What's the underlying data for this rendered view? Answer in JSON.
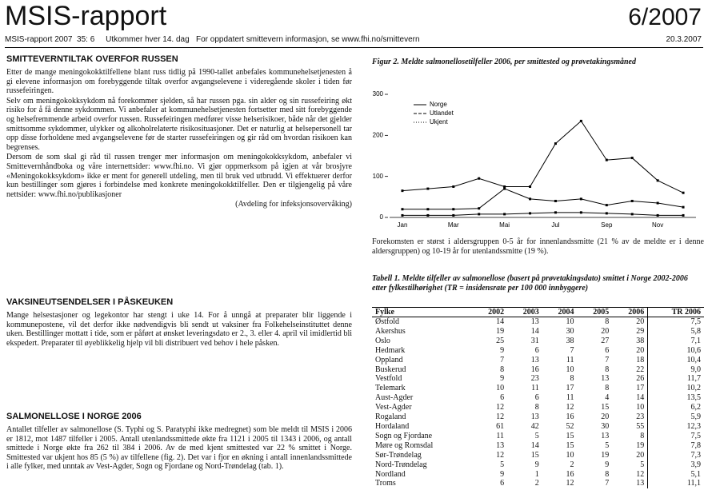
{
  "header": {
    "title": "MSIS-rapport",
    "issue": "6/2007",
    "subline": "MSIS-rapport 2007  35: 6     Utkommer hver 14. dag   For oppdatert smittevern informasjon, se www.fhi.no/smittevern",
    "date": "20.3.2007"
  },
  "sections": [
    {
      "heading": "SMITTEVERNTILTAK OVERFOR RUSSEN",
      "paragraphs": [
        "Etter de mange meningokokktilfellene blant russ tidlig på 1990-tallet anbefales kommunehelsetjenesten å gi elevene informasjon om forebyggende tiltak overfor avgangselevene i videregående skoler i tiden før russefeiringen.",
        "Selv om meningokokksykdom nå forekommer sjelden, så har russen pga. sin alder og sin russefeiring økt risiko for å få denne sykdommen. Vi anbefaler at kommunehelsetjenesten fortsetter med sitt forebyggende og helsefremmende arbeid overfor russen. Russefeiringen medfører visse helserisikoer, både når det gjelder smittsomme sykdommer, ulykker og alkoholrelaterte risikosituasjoner. Det er naturlig at helsepersonell tar opp disse forholdene med avgangselevene før de starter russefeiringen og gir råd om hvordan risikoen kan begrenses.",
        "Dersom de som skal gi råd til russen trenger mer informasjon om meningokokksykdom, anbefaler vi Smittevernhåndboka og våre internettsider: www.fhi.no. Vi gjør oppmerksom på igjen at vår brosjyre «Meningokokksykdom» ikke er ment for generell utdeling, men til bruk ved utbrudd. Vi effektuerer derfor kun bestillinger som gjøres i forbindelse med konkrete meningokokktilfeller. Den er tilgjengelig på våre nettsider: www.fhi.no/publikasjoner"
      ],
      "signature": "(Avdeling for infeksjonsovervåking)"
    },
    {
      "heading": "VAKSINEUTSENDELSER I PÅSKEUKEN",
      "paragraphs": [
        "Mange helsestasjoner og legekontor har stengt i uke 14. For å unngå at preparater blir liggende i kommunepostene, vil det derfor ikke nødvendigvis bli sendt ut vaksiner fra Folkehelseinstituttet denne uken. Bestillinger mottatt i tide, som er påført at ønsket leveringsdato er 2., 3. eller 4. april vil imidlertid bli ekspedert. Preparater til øyeblikkelig hjelp vil bli distribuert ved behov i hele påsken."
      ]
    },
    {
      "heading": "SALMONELLOSE I NORGE 2006",
      "paragraphs": [
        "Antallet tilfeller av salmonellose (S. Typhi og S. Paratyphi ikke medregnet) som ble meldt til MSIS i 2006 er 1812, mot 1487 tilfeller i 2005. Antall utenlandssmittede økte fra 1121 i 2005 til 1343 i 2006, og antall smittede i Norge økte fra 262 til 384 i 2006. Av de med kjent smittested var 22 % smittet i Norge. Smittested var ukjent hos 85 (5 %) av tilfellene (fig. 2). Det var i fjor en økning i antall innenlandssmittede i alle fylker, med unntak av Vest-Agder, Sogn og Fjordane og Nord-Trøndelag (tab. 1)."
      ]
    }
  ],
  "figure": {
    "caption": "Figur 2. Meldte salmonellosetilfeller 2006, per smittested og prøvetakingsmåned",
    "chart_data": {
      "type": "line",
      "categories": [
        "Jan",
        null,
        "Mar",
        null,
        "Mai",
        null,
        "Jul",
        null,
        "Sep",
        null,
        "Nov",
        null
      ],
      "series": [
        {
          "name": "Norge",
          "color": "#000000",
          "values": [
            20,
            20,
            20,
            22,
            70,
            45,
            40,
            45,
            30,
            40,
            35,
            25
          ]
        },
        {
          "name": "Utlandet",
          "color": "#000000",
          "values": [
            65,
            70,
            75,
            95,
            75,
            75,
            180,
            235,
            140,
            145,
            90,
            60
          ]
        },
        {
          "name": "Ukjent",
          "color": "#000000",
          "values": [
            5,
            5,
            5,
            8,
            8,
            10,
            12,
            12,
            10,
            8,
            5,
            5
          ]
        }
      ],
      "ylim": [
        0,
        300
      ],
      "yticks": [
        0,
        100,
        200,
        300
      ]
    },
    "text": "Forekomsten er størst i aldersgruppen 0-5 år for innenlandssmitte (21 % av de meldte er i denne aldersgruppen) og 10-19 år for utenlandssmitte (19 %)."
  },
  "table": {
    "caption": "Tabell 1. Meldte tilfeller av salmonellose (basert på prøvetakingsdato) smittet i Norge 2002-2006 etter fylkestilhørighet (TR = insidensrate per 100 000 innbyggere)",
    "header": [
      "Fylke",
      "2002",
      "2003",
      "2004",
      "2005",
      "2006",
      "TR 2006"
    ],
    "rows": [
      [
        "Østfold",
        "14",
        "13",
        "10",
        "8",
        "20",
        "7,5"
      ],
      [
        "Akershus",
        "19",
        "14",
        "30",
        "20",
        "29",
        "5,8"
      ],
      [
        "Oslo",
        "25",
        "31",
        "38",
        "27",
        "38",
        "7,1"
      ],
      [
        "Hedmark",
        "9",
        "6",
        "7",
        "6",
        "20",
        "10,6"
      ],
      [
        "Oppland",
        "7",
        "13",
        "11",
        "7",
        "18",
        "10,4"
      ],
      [
        "Buskerud",
        "8",
        "16",
        "10",
        "8",
        "22",
        "9,0"
      ],
      [
        "Vestfold",
        "9",
        "23",
        "8",
        "13",
        "26",
        "11,7"
      ],
      [
        "Telemark",
        "10",
        "11",
        "17",
        "8",
        "17",
        "10,2"
      ],
      [
        "Aust-Agder",
        "6",
        "6",
        "11",
        "4",
        "14",
        "13,5"
      ],
      [
        "Vest-Agder",
        "12",
        "8",
        "12",
        "15",
        "10",
        "6,2"
      ],
      [
        "Rogaland",
        "12",
        "13",
        "16",
        "20",
        "23",
        "5,9"
      ],
      [
        "Hordaland",
        "61",
        "42",
        "52",
        "30",
        "55",
        "12,3"
      ],
      [
        "Sogn og Fjordane",
        "11",
        "5",
        "15",
        "13",
        "8",
        "7,5"
      ],
      [
        "Møre og Romsdal",
        "13",
        "14",
        "15",
        "5",
        "19",
        "7,8"
      ],
      [
        "Sør-Trøndelag",
        "12",
        "15",
        "10",
        "19",
        "20",
        "7,3"
      ],
      [
        "Nord-Trøndelag",
        "5",
        "9",
        "2",
        "9",
        "5",
        "3,9"
      ],
      [
        "Nordland",
        "9",
        "1",
        "16",
        "8",
        "12",
        "5,1"
      ],
      [
        "Troms",
        "6",
        "2",
        "12",
        "7",
        "13",
        "11,1"
      ]
    ]
  }
}
